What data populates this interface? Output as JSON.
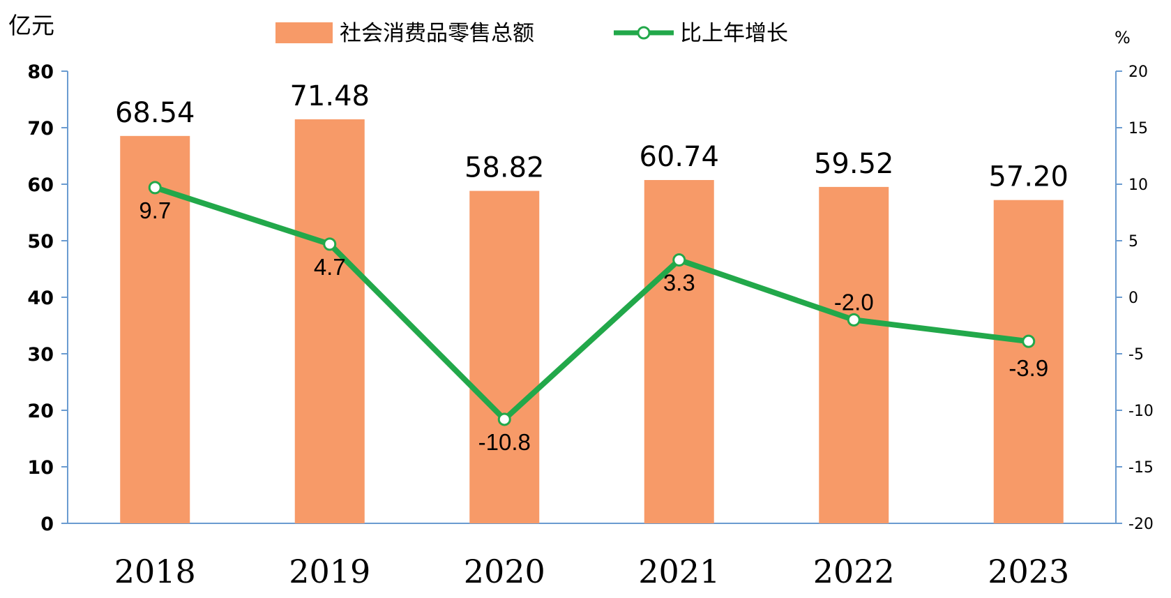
{
  "chart_data": {
    "type": "bar",
    "categories": [
      "2018",
      "2019",
      "2020",
      "2021",
      "2022",
      "2023"
    ],
    "series": [
      {
        "name": "社会消费品零售总额",
        "type": "bar",
        "axis": "left",
        "values": [
          68.54,
          71.48,
          58.82,
          60.74,
          59.52,
          57.2
        ],
        "labels": [
          "68.54",
          "71.48",
          "58.82",
          "60.74",
          "59.52",
          "57.20"
        ]
      },
      {
        "name": "比上年增长",
        "type": "line",
        "axis": "right",
        "values": [
          9.7,
          4.7,
          -10.8,
          3.3,
          -2.0,
          -3.9
        ],
        "labels": [
          "9.7",
          "4.7",
          "-10.8",
          "3.3",
          "-2.0",
          "-3.9"
        ]
      }
    ],
    "ylabel": "亿元",
    "ylabel_right": "%",
    "ylim": [
      0,
      80
    ],
    "ylim_right": [
      -20,
      20
    ],
    "yticks": [
      "0",
      "10",
      "20",
      "30",
      "40",
      "50",
      "60",
      "70",
      "80"
    ],
    "yticks_right": [
      "-20",
      "-15",
      "-10",
      "-5",
      "0",
      "5",
      "10",
      "15",
      "20"
    ],
    "legend_position": "top-center",
    "grid": false,
    "colors": {
      "bar": "#F79A68",
      "line": "#22A84A",
      "marker_fill": "#ffffff",
      "axis": "#6A9BD0"
    }
  }
}
